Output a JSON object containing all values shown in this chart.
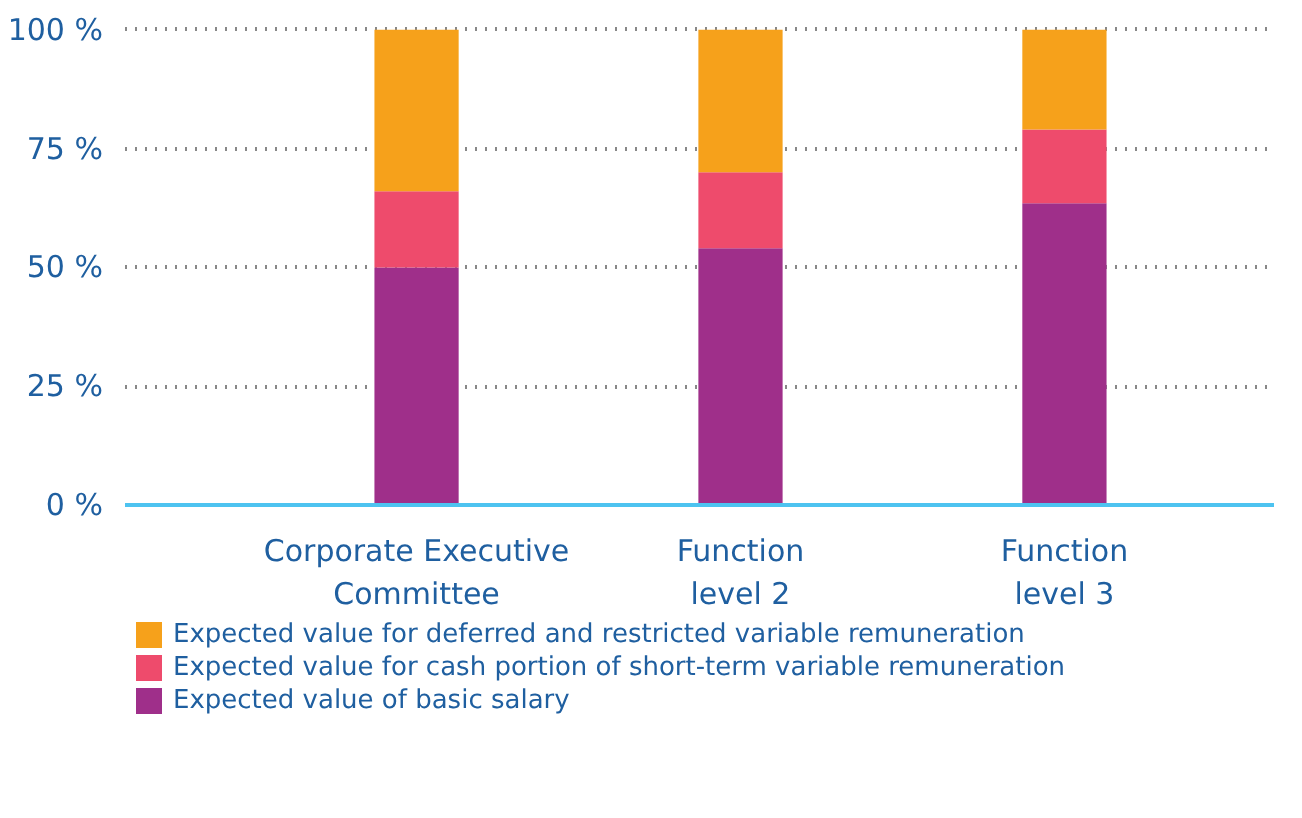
{
  "chart_data": {
    "type": "bar",
    "stacked": true,
    "categories": [
      "Corporate Executive\nCommittee",
      "Function\nlevel 2",
      "Function\nlevel 3"
    ],
    "series": [
      {
        "name": "Expected value of basic salary",
        "color": "#9f2f8a",
        "values": [
          50,
          54,
          63.5
        ]
      },
      {
        "name": "Expected value for cash portion of short-term variable remuneration",
        "color": "#ee4b6c",
        "values": [
          16,
          16,
          15.5
        ]
      },
      {
        "name": "Expected value for deferred and restricted variable remuneration",
        "color": "#f6a11b",
        "values": [
          34,
          30,
          21
        ]
      }
    ],
    "ylim": [
      0,
      101
    ],
    "yticks": [
      {
        "value": 0,
        "label": "0 %"
      },
      {
        "value": 25,
        "label": "25 %"
      },
      {
        "value": 50,
        "label": "50 %"
      },
      {
        "value": 75,
        "label": "75 %"
      },
      {
        "value": 100,
        "label": "100 %"
      }
    ],
    "grid": "y",
    "legend": "bottom"
  }
}
